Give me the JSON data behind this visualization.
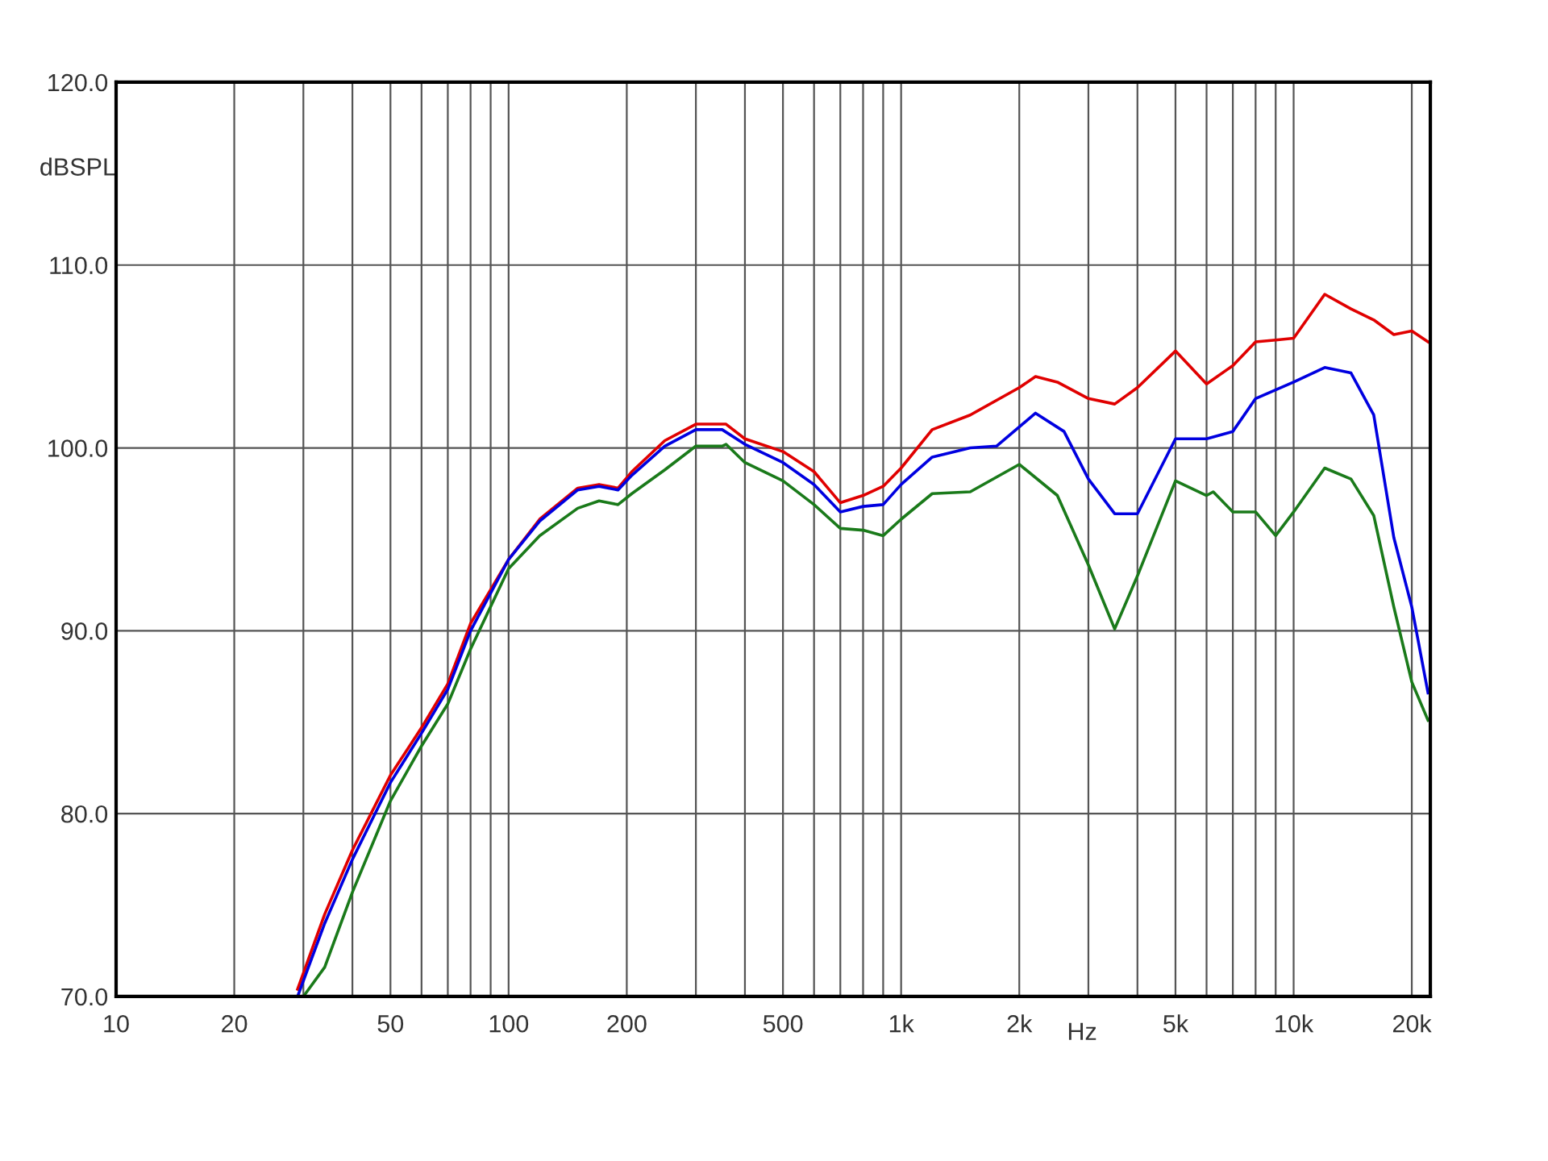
{
  "chart_data": {
    "type": "line",
    "xlabel": "Hz",
    "ylabel": "dBSPL",
    "log": "x",
    "grid": true,
    "line_style": "solid",
    "marker": "none",
    "xlim": [
      10,
      22300
    ],
    "ylim": [
      70,
      120
    ],
    "xticks": [
      10,
      20,
      {
        "value": 30,
        "label": null
      },
      {
        "value": 40,
        "label": null
      },
      50,
      {
        "value": 60,
        "label": null
      },
      {
        "value": 70,
        "label": null
      },
      {
        "value": 80,
        "label": null
      },
      {
        "value": 90,
        "label": null
      },
      100,
      200,
      {
        "value": 300,
        "label": null
      },
      {
        "value": 400,
        "label": null
      },
      500,
      {
        "value": 600,
        "label": null
      },
      {
        "value": 700,
        "label": null
      },
      {
        "value": 800,
        "label": null
      },
      {
        "value": 900,
        "label": null
      },
      {
        "value": 1000,
        "label": "1k"
      },
      {
        "value": 2000,
        "label": "2k"
      },
      {
        "value": 3000,
        "label": null
      },
      {
        "value": 4000,
        "label": null
      },
      {
        "value": 5000,
        "label": "5k"
      },
      {
        "value": 6000,
        "label": null
      },
      {
        "value": 7000,
        "label": null
      },
      {
        "value": 8000,
        "label": null
      },
      {
        "value": 9000,
        "label": null
      },
      {
        "value": 10000,
        "label": "10k"
      },
      {
        "value": 20000,
        "label": "20k"
      }
    ],
    "yticks": [
      {
        "value": 70,
        "label": "70.0"
      },
      {
        "value": 80,
        "label": "80.0"
      },
      {
        "value": 90,
        "label": "90.0"
      },
      {
        "value": 100,
        "label": "100.0"
      },
      {
        "value": 110,
        "label": "110.0"
      },
      {
        "value": 120,
        "label": "120.0"
      }
    ],
    "series": [
      {
        "color": "#e00000",
        "x": [
          29,
          34,
          40,
          50,
          60,
          70,
          80,
          100,
          120,
          150,
          170,
          190,
          206,
          250,
          300,
          350,
          358,
          400,
          500,
          600,
          700,
          800,
          900,
          1000,
          1200,
          1500,
          2000,
          2200,
          2500,
          3000,
          3500,
          4000,
          5000,
          6000,
          7000,
          8000,
          9000,
          10000,
          12000,
          14000,
          16000,
          18000,
          20000,
          22000
        ],
        "values": [
          70.4,
          74.5,
          78.0,
          82.1,
          84.7,
          87.1,
          90.4,
          93.9,
          96.1,
          97.8,
          98.0,
          97.8,
          98.7,
          100.4,
          101.3,
          101.3,
          101.3,
          100.5,
          99.8,
          98.7,
          97.0,
          97.4,
          97.9,
          98.9,
          101.0,
          101.8,
          103.3,
          103.9,
          103.6,
          102.7,
          102.4,
          103.3,
          105.3,
          103.5,
          104.5,
          105.8,
          105.9,
          106.0,
          108.4,
          107.6,
          107.0,
          106.2,
          106.4,
          105.8
        ]
      },
      {
        "color": "#0000e0",
        "x": [
          29,
          34,
          40,
          50,
          60,
          70,
          80,
          100,
          120,
          150,
          170,
          190,
          206,
          250,
          300,
          350,
          400,
          500,
          600,
          700,
          800,
          900,
          1000,
          1200,
          1500,
          1750,
          2200,
          2600,
          3000,
          3500,
          4000,
          5000,
          6000,
          7000,
          8000,
          10000,
          12000,
          14000,
          16000,
          18000,
          20000,
          22000
        ],
        "values": [
          70.0,
          74.0,
          77.5,
          81.7,
          84.4,
          86.8,
          90.0,
          93.9,
          96.0,
          97.7,
          97.9,
          97.7,
          98.5,
          100.1,
          101.0,
          101.0,
          100.2,
          99.2,
          98.0,
          96.5,
          96.8,
          96.9,
          98.0,
          99.5,
          100.0,
          100.1,
          101.9,
          100.9,
          98.3,
          96.4,
          96.4,
          100.5,
          100.5,
          100.9,
          102.7,
          103.6,
          104.4,
          104.1,
          101.8,
          95.1,
          91.3,
          86.6
        ]
      },
      {
        "color": "#1a7a1a",
        "x": [
          30,
          34,
          40,
          50,
          60,
          70,
          80,
          100,
          120,
          150,
          170,
          190,
          206,
          250,
          300,
          350,
          358,
          400,
          500,
          600,
          700,
          800,
          900,
          1000,
          1200,
          1500,
          2000,
          2500,
          3000,
          3500,
          4000,
          5000,
          6000,
          6240,
          7000,
          8000,
          9000,
          10000,
          12000,
          14000,
          16000,
          18000,
          20000,
          22000
        ],
        "values": [
          70.0,
          71.6,
          75.7,
          80.7,
          83.7,
          86.0,
          89.0,
          93.4,
          95.2,
          96.7,
          97.1,
          96.9,
          97.5,
          98.8,
          100.1,
          100.1,
          100.2,
          99.2,
          98.2,
          96.9,
          95.6,
          95.5,
          95.2,
          96.1,
          97.5,
          97.6,
          99.1,
          97.4,
          93.6,
          90.1,
          93.0,
          98.2,
          97.4,
          97.6,
          96.5,
          96.5,
          95.2,
          96.5,
          98.9,
          98.3,
          96.3,
          91.3,
          87.2,
          85.1
        ]
      }
    ]
  }
}
